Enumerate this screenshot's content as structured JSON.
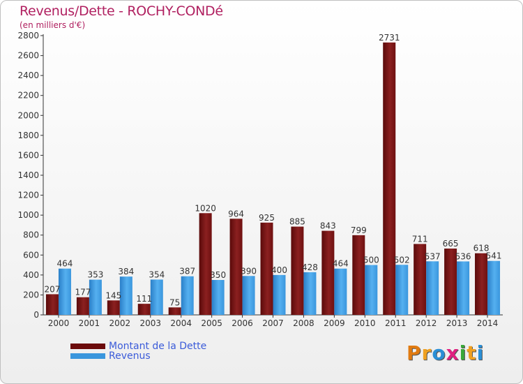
{
  "chart_data": {
    "type": "bar",
    "title": "Revenus/Dette - ROCHY-CONDé",
    "subtitle": "(en milliers d'€)",
    "categories": [
      "2000",
      "2001",
      "2002",
      "2003",
      "2004",
      "2005",
      "2006",
      "2007",
      "2008",
      "2009",
      "2010",
      "2011",
      "2012",
      "2013",
      "2014"
    ],
    "series": [
      {
        "name": "Montant de la Dette",
        "color": "#8b1a1a",
        "values": [
          207,
          177,
          145,
          111,
          75,
          1020,
          964,
          925,
          885,
          843,
          799,
          2731,
          711,
          665,
          618
        ]
      },
      {
        "name": "Revenus",
        "color": "#3a96dd",
        "values": [
          464,
          353,
          384,
          354,
          387,
          350,
          390,
          400,
          428,
          464,
          500,
          502,
          537,
          536,
          541
        ]
      }
    ],
    "ylim": [
      0,
      2800
    ],
    "yticks": [
      0,
      200,
      400,
      600,
      800,
      1000,
      1200,
      1400,
      1600,
      1800,
      2000,
      2200,
      2400,
      2600,
      2800
    ],
    "grid": false,
    "legend": "bottom-left"
  },
  "legend": {
    "items": [
      {
        "label": "Montant de la Dette",
        "color": "#6b0b0b"
      },
      {
        "label": "Revenus",
        "color": "#3a96dd"
      }
    ]
  },
  "logo": {
    "text": "Proxiti",
    "colors": [
      "#e07a10",
      "#f0a020",
      "#2a8fd6",
      "#e02080",
      "#3aa83a",
      "#f0a020",
      "#2a8fd6"
    ]
  }
}
